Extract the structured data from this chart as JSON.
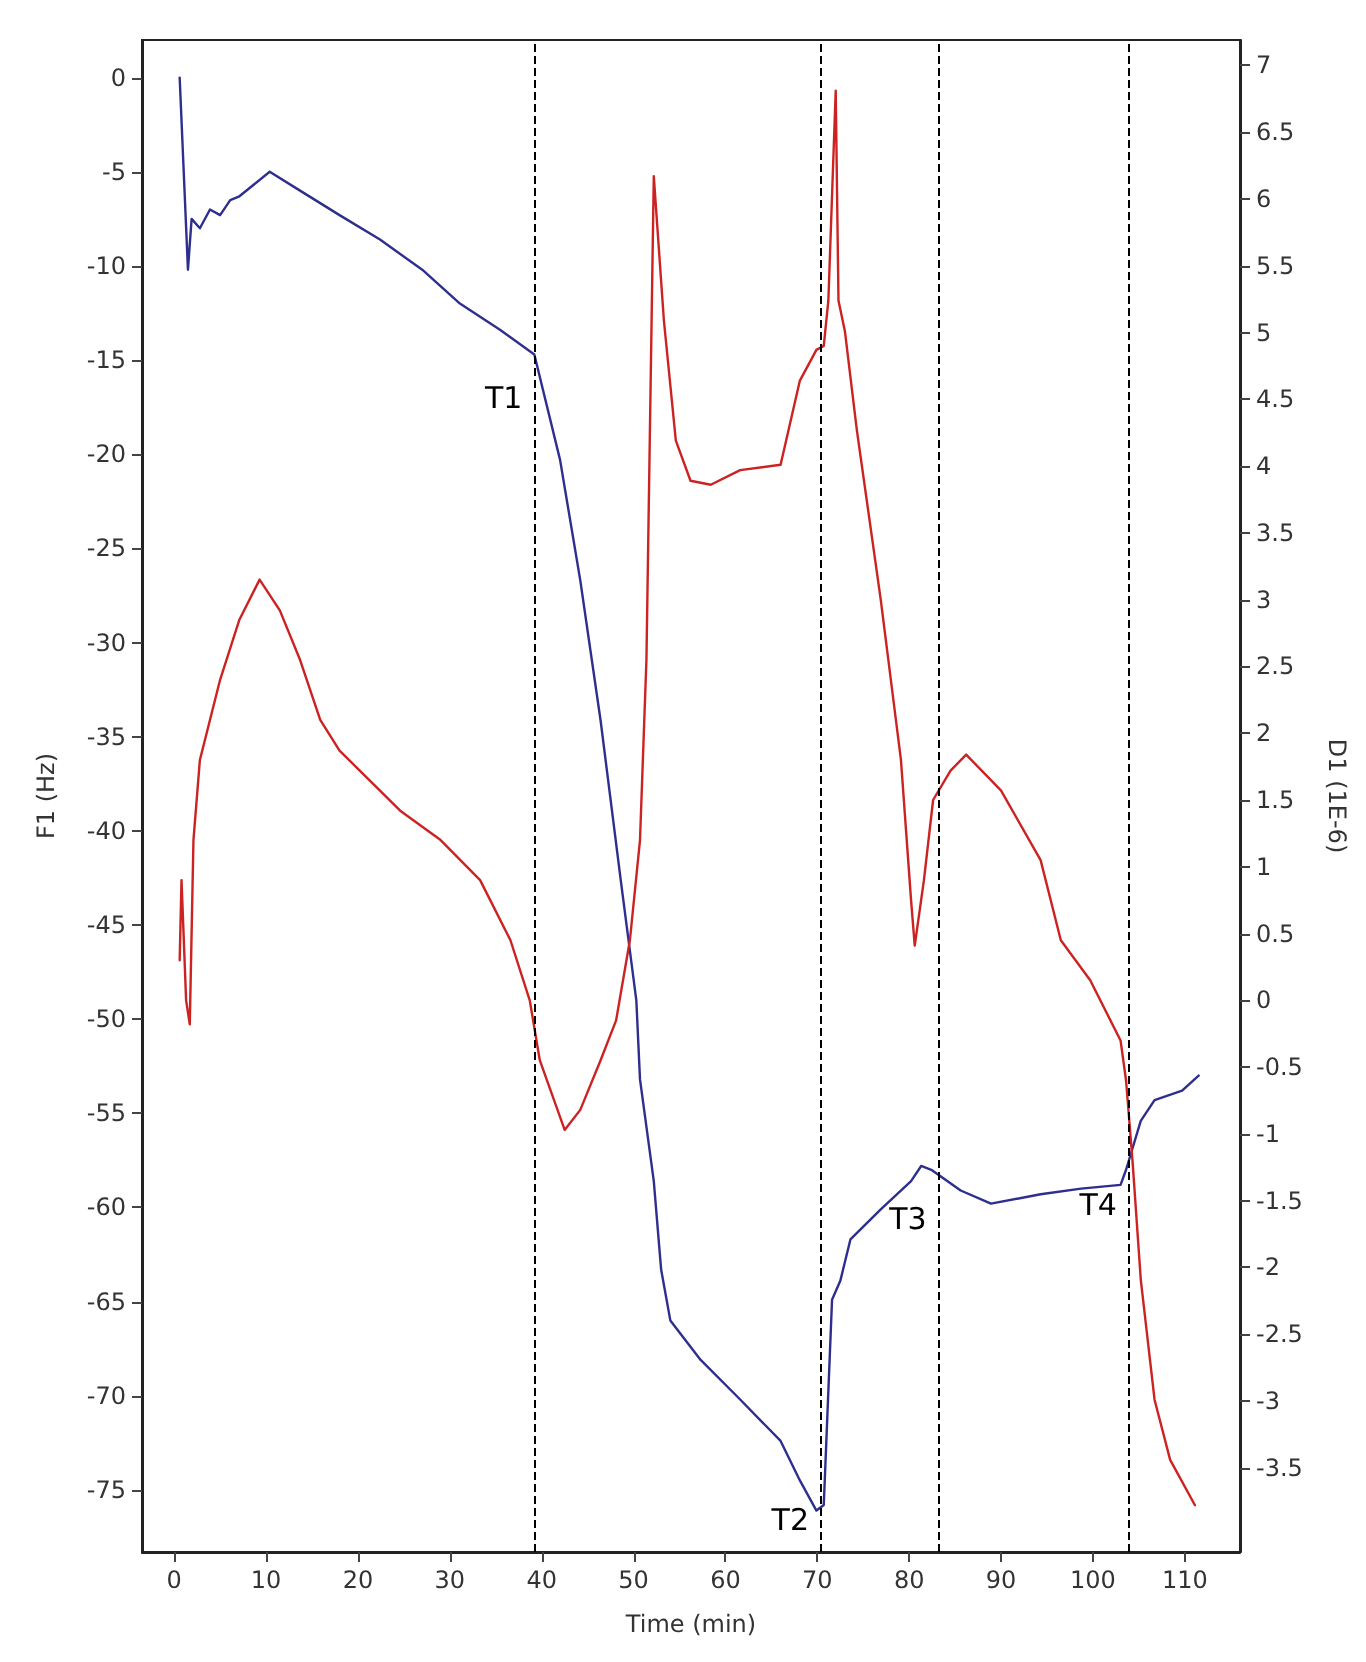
{
  "chart_data": {
    "type": "line",
    "xlabel": "Time (min)",
    "ylabel": "F1 (Hz)",
    "y2label": "D1 (1E-6)",
    "xlim": [
      -3.5,
      116
    ],
    "xticks": [
      0,
      10,
      20,
      30,
      40,
      50,
      60,
      70,
      80,
      90,
      100,
      110
    ],
    "ylim": [
      -78.3,
      2
    ],
    "yticks": [
      0,
      -5,
      -10,
      -15,
      -20,
      -25,
      -30,
      -35,
      -40,
      -45,
      -50,
      -55,
      -60,
      -65,
      -70,
      -75
    ],
    "y2lim": [
      -4.13,
      7.19
    ],
    "y2ticks": [
      -3.5,
      -3,
      -2.5,
      -2,
      -1.5,
      -1,
      -0.5,
      0,
      0.5,
      1,
      1.5,
      2,
      2.5,
      3,
      3.5,
      4,
      4.5,
      5,
      5.5,
      6,
      6.5,
      7
    ],
    "grid": false,
    "marker": "none",
    "line_style": "solid",
    "series": [
      {
        "color": "#2e2e8f",
        "x": [
          0.6,
          1.5,
          1.9,
          2.8,
          3.9,
          5.0,
          6.1,
          7.1,
          10.4,
          13.7,
          18,
          22.4,
          27,
          31.1,
          35.5,
          39.2,
          42,
          44.2,
          46.4,
          48.6,
          50.3,
          50.7,
          52.2,
          53.0,
          54,
          57.3,
          61.6,
          66,
          68.1,
          69.9,
          70.7,
          71.6,
          72.5,
          73.6,
          76.9,
          80.2,
          81.3,
          82.4,
          85.6,
          88.9,
          94.3,
          98.7,
          103,
          103.6,
          105.2,
          106.7,
          109.7,
          111.5
        ],
        "values": [
          0,
          -10.2,
          -7.5,
          -8,
          -7,
          -7.3,
          -6.5,
          -6.3,
          -5.0,
          -6,
          -7.3,
          -8.6,
          -10.2,
          -12,
          -13.4,
          -14.7,
          -20.3,
          -26.7,
          -34.1,
          -42.6,
          -49,
          -53.2,
          -58.6,
          -63.3,
          -66,
          -68.1,
          -70.2,
          -72.4,
          -74.5,
          -76.1,
          -75.8,
          -64.9,
          -63.9,
          -61.7,
          -60.1,
          -58.6,
          -57.8,
          -58,
          -59.1,
          -59.8,
          -59.3,
          -59,
          -58.8,
          -58,
          -55.4,
          -54.3,
          -53.8,
          -53
        ]
      },
      {
        "color": "#cc2222",
        "axis": "y2",
        "x": [
          0.6,
          0.8,
          1.3,
          1.7,
          2.1,
          2.8,
          5.0,
          7.1,
          9.3,
          11.5,
          13.7,
          15.9,
          18.0,
          20.2,
          24.6,
          29,
          33.3,
          36.6,
          38.7,
          39.8,
          42.5,
          44.2,
          46.4,
          48.1,
          49.6,
          50.7,
          51.4,
          52.2,
          53.3,
          54.6,
          56.2,
          58.4,
          61.6,
          66,
          66.6,
          68.1,
          69.9,
          70.7,
          71.2,
          72.0,
          72.3,
          73,
          74.3,
          76.9,
          79.1,
          80.2,
          80.6,
          81.6,
          82.6,
          84.5,
          86.2,
          90,
          94.3,
          96.5,
          99.7,
          103,
          103.6,
          104.3,
          105.2,
          106.7,
          108.4,
          111.1
        ],
        "values": [
          0.3,
          0.9,
          0.0,
          -0.18,
          1.2,
          1.8,
          2.4,
          2.85,
          3.15,
          2.92,
          2.55,
          2.1,
          1.87,
          1.72,
          1.42,
          1.2,
          0.9,
          0.45,
          0.0,
          -0.45,
          -0.97,
          -0.82,
          -0.45,
          -0.15,
          0.45,
          1.2,
          2.55,
          6.17,
          5.09,
          4.19,
          3.89,
          3.86,
          3.97,
          4.01,
          4.19,
          4.64,
          4.87,
          4.9,
          5.24,
          6.81,
          5.24,
          5.01,
          4.27,
          3.0,
          1.8,
          0.75,
          0.41,
          0.9,
          1.5,
          1.72,
          1.84,
          1.57,
          1.05,
          0.45,
          0.15,
          -0.3,
          -0.6,
          -1.2,
          -2.09,
          -2.99,
          -3.44,
          -3.78
        ]
      }
    ],
    "ref_lines": [
      {
        "axis": "x",
        "value": 39.2,
        "label": "T1",
        "color": "#000000",
        "line_style": "dashed"
      },
      {
        "axis": "x",
        "value": 70.4,
        "label": "T2",
        "color": "#000000",
        "line_style": "dashed"
      },
      {
        "axis": "x",
        "value": 83.2,
        "label": "T3",
        "color": "#000000",
        "line_style": "dashed"
      },
      {
        "axis": "x",
        "value": 103.9,
        "label": "T4",
        "color": "#000000",
        "line_style": "dashed"
      }
    ]
  }
}
